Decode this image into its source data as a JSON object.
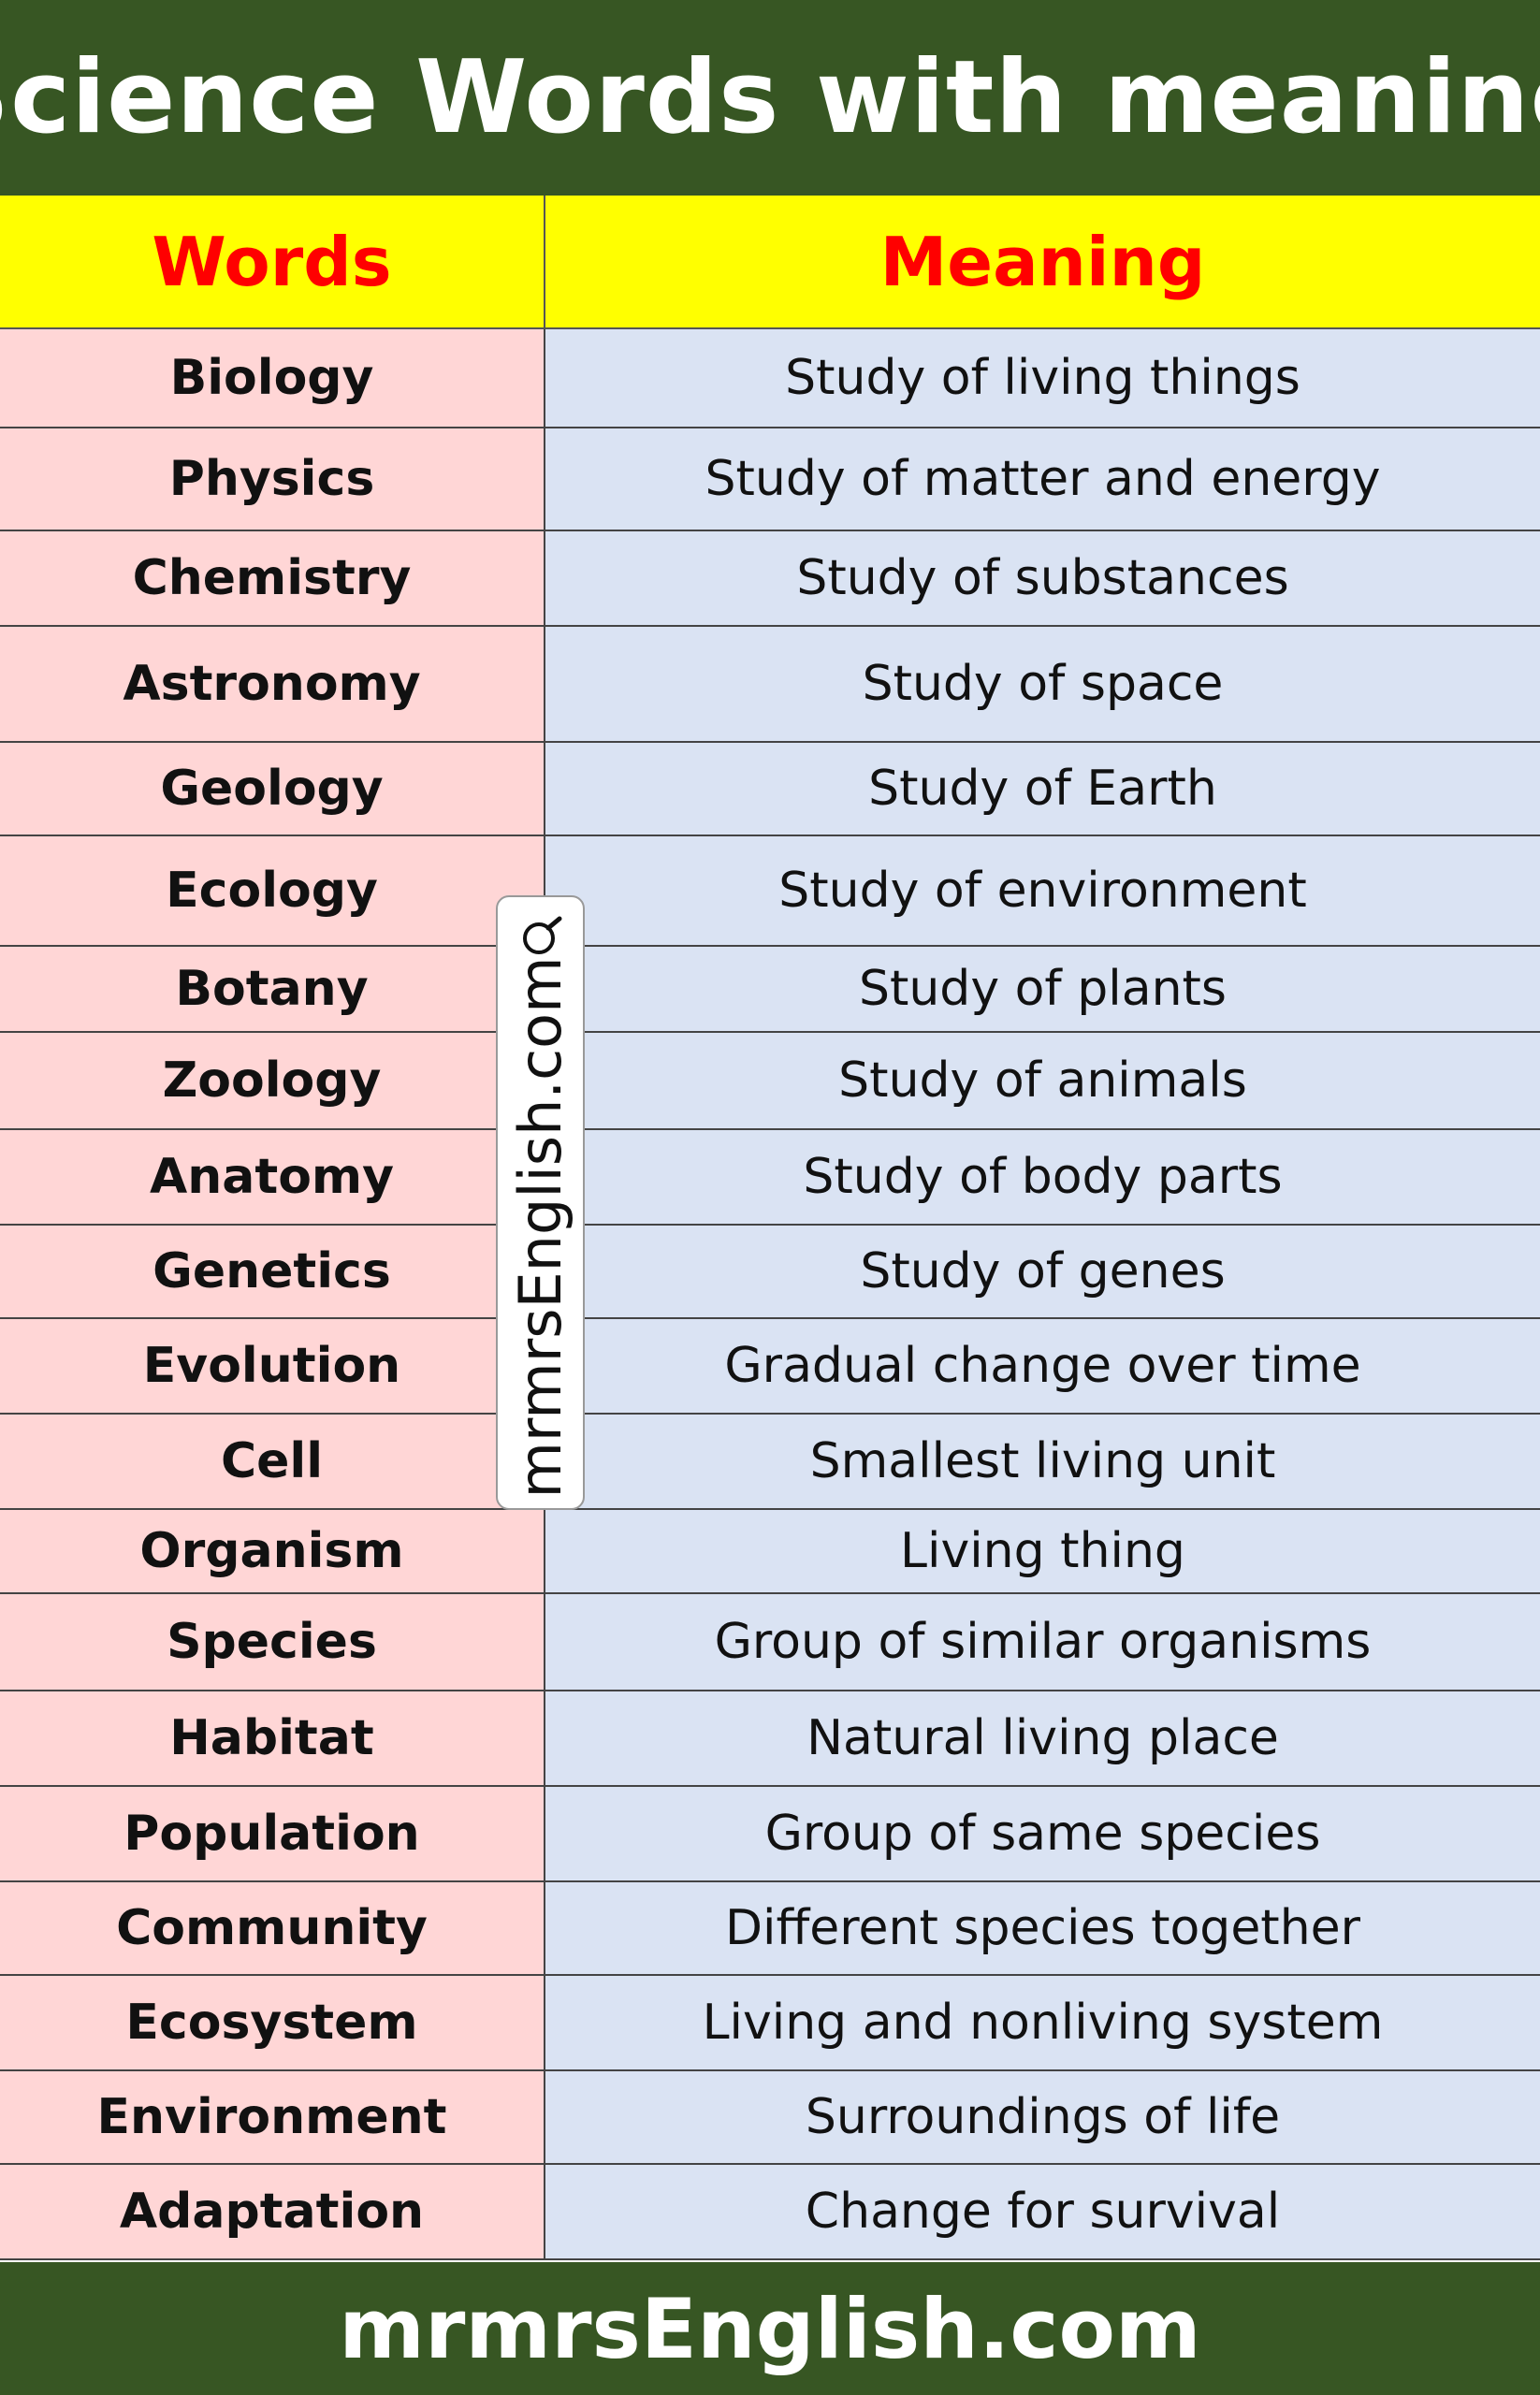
{
  "title": "Science Words with meaning",
  "header": {
    "words": "Words",
    "meaning": "Meaning"
  },
  "rows": [
    {
      "word": "Biology",
      "meaning": "Study of living things"
    },
    {
      "word": "Physics",
      "meaning": "Study of matter and energy"
    },
    {
      "word": "Chemistry",
      "meaning": "Study of substances"
    },
    {
      "word": "Astronomy",
      "meaning": "Study of space"
    },
    {
      "word": "Geology",
      "meaning": "Study of Earth"
    },
    {
      "word": "Ecology",
      "meaning": "Study of environment"
    },
    {
      "word": "Botany",
      "meaning": "Study of plants"
    },
    {
      "word": "Zoology",
      "meaning": "Study of animals"
    },
    {
      "word": "Anatomy",
      "meaning": "Study of body parts"
    },
    {
      "word": "Genetics",
      "meaning": "Study of genes"
    },
    {
      "word": "Evolution",
      "meaning": "Gradual change over time"
    },
    {
      "word": "Cell",
      "meaning": "Smallest living unit"
    },
    {
      "word": "Organism",
      "meaning": "Living thing"
    },
    {
      "word": "Species",
      "meaning": "Group of similar organisms"
    },
    {
      "word": "Habitat",
      "meaning": "Natural living place"
    },
    {
      "word": "Population",
      "meaning": "Group of same species"
    },
    {
      "word": "Community",
      "meaning": "Different species together"
    },
    {
      "word": "Ecosystem",
      "meaning": "Living and nonliving system"
    },
    {
      "word": "Environment",
      "meaning": "Surroundings of life"
    },
    {
      "word": "Adaptation",
      "meaning": "Change for survival"
    }
  ],
  "watermark": {
    "text": "mrmrsEnglish.com",
    "icon": "magnifier-icon"
  },
  "footer": {
    "text": "mrmrsEnglish.com"
  },
  "colors": {
    "title_bg": "#375623",
    "header_bg": "#ffff00",
    "header_text": "#ff0000",
    "word_bg": "#ffd6d6",
    "meaning_bg": "#dae3f3"
  }
}
